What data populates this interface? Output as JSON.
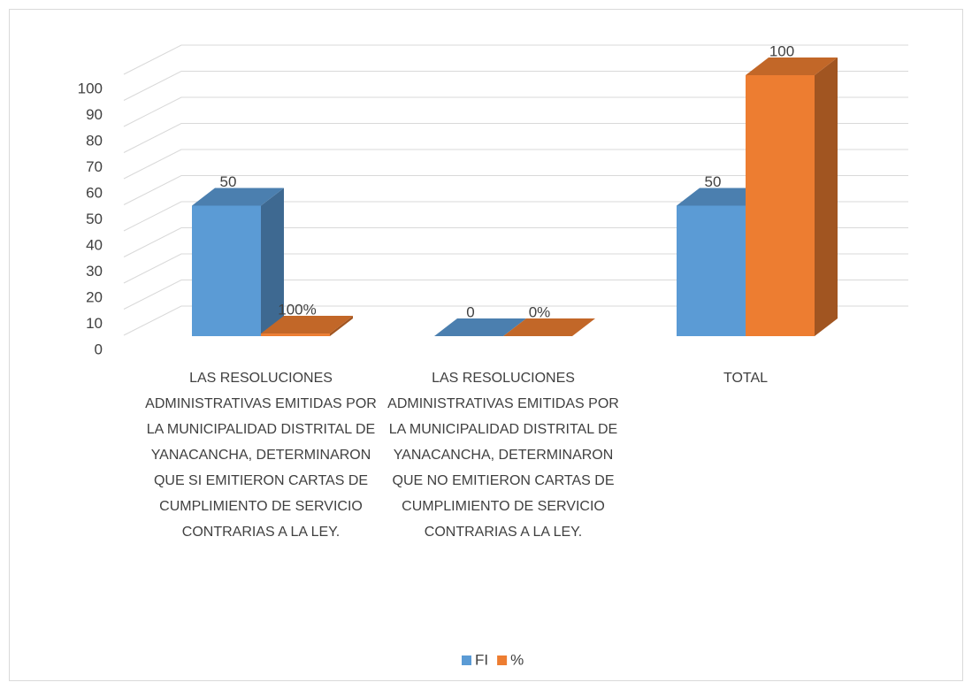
{
  "chart_data": {
    "type": "bar3d",
    "categories": [
      "LAS RESOLUCIONES ADMINISTRATIVAS EMITIDAS POR LA MUNICIPALIDAD DISTRITAL DE YANACANCHA, DETERMINARON QUE SI EMITIERON CARTAS DE CUMPLIMIENTO DE SERVICIO CONTRARIAS A LA LEY.",
      "LAS RESOLUCIONES ADMINISTRATIVAS EMITIDAS POR LA MUNICIPALIDAD DISTRITAL DE YANACANCHA, DETERMINARON QUE NO EMITIERON CARTAS DE CUMPLIMIENTO DE SERVICIO CONTRARIAS A LA LEY.",
      "TOTAL"
    ],
    "series": [
      {
        "name": "FI",
        "color": "#5b9bd5",
        "values": [
          50,
          0,
          50
        ]
      },
      {
        "name": "%",
        "color": "#ed7d31",
        "values": [
          1,
          0,
          100
        ],
        "value_labels": [
          "100%",
          "0%",
          "100"
        ]
      }
    ],
    "ylim": [
      0,
      100
    ],
    "yticks": [
      0,
      10,
      20,
      30,
      40,
      50,
      60,
      70,
      80,
      90,
      100
    ],
    "grid": true,
    "legend": "bottom"
  }
}
